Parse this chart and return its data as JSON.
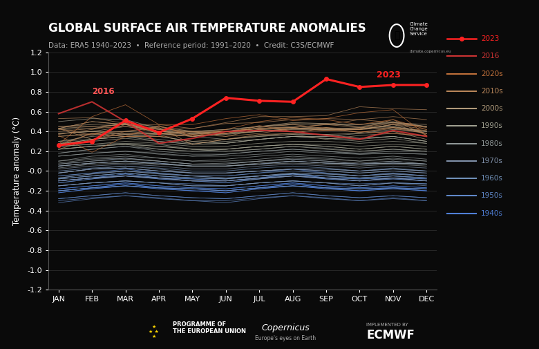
{
  "title": "GLOBAL SURFACE AIR TEMPERATURE ANOMALIES",
  "subtitle": "Data: ERA5 1940–2023  •  Reference period: 1991–2020  •  Credit: C3S/ECMWF",
  "ylabel": "Temperature anomaly (°C)",
  "ylim": [
    -1.2,
    1.2
  ],
  "months": [
    "JAN",
    "FEB",
    "MAR",
    "APR",
    "MAY",
    "JUN",
    "JUL",
    "AUG",
    "SEP",
    "OCT",
    "NOV",
    "DEC"
  ],
  "bg_color": "#0a0a0a",
  "year_2023": [
    0.26,
    0.3,
    0.51,
    0.39,
    0.53,
    0.74,
    0.71,
    0.7,
    0.93,
    0.85,
    0.87,
    0.87
  ],
  "year_2016": [
    0.58,
    0.7,
    0.5,
    0.28,
    0.33,
    0.4,
    0.41,
    0.4,
    0.36,
    0.32,
    0.41,
    0.35
  ],
  "decade_colors": {
    "2020s": "#c0703a",
    "2010s": "#b8865a",
    "2000s": "#b09a7a",
    "1990s": "#a0a090",
    "1980s": "#909898",
    "1970s": "#8090a8",
    "1960s": "#7090b8",
    "1950s": "#6088c8",
    "1940s": "#5080d8"
  },
  "decades": {
    "2020s": {
      "2020": [
        0.27,
        0.55,
        0.67,
        0.47,
        0.47,
        0.53,
        0.57,
        0.51,
        0.53,
        0.59,
        0.62,
        0.36
      ],
      "2021": [
        0.36,
        0.19,
        0.35,
        0.46,
        0.35,
        0.42,
        0.5,
        0.54,
        0.52,
        0.47,
        0.52,
        0.42
      ],
      "2022": [
        0.26,
        0.38,
        0.35,
        0.35,
        0.36,
        0.38,
        0.46,
        0.4,
        0.41,
        0.4,
        0.38,
        0.36
      ]
    },
    "2010s": {
      "2010": [
        0.53,
        0.54,
        0.48,
        0.38,
        0.4,
        0.35,
        0.42,
        0.4,
        0.41,
        0.43,
        0.52,
        0.36
      ],
      "2011": [
        0.22,
        0.32,
        0.4,
        0.44,
        0.27,
        0.32,
        0.37,
        0.38,
        0.44,
        0.39,
        0.44,
        0.41
      ],
      "2012": [
        0.37,
        0.42,
        0.49,
        0.4,
        0.4,
        0.38,
        0.44,
        0.47,
        0.43,
        0.39,
        0.43,
        0.38
      ],
      "2013": [
        0.43,
        0.36,
        0.47,
        0.38,
        0.37,
        0.35,
        0.38,
        0.43,
        0.44,
        0.42,
        0.47,
        0.42
      ],
      "2014": [
        0.43,
        0.32,
        0.38,
        0.37,
        0.39,
        0.4,
        0.43,
        0.44,
        0.47,
        0.52,
        0.49,
        0.44
      ],
      "2015": [
        0.45,
        0.45,
        0.47,
        0.47,
        0.43,
        0.49,
        0.55,
        0.55,
        0.56,
        0.65,
        0.63,
        0.62
      ],
      "2016": [
        0.58,
        0.7,
        0.5,
        0.28,
        0.33,
        0.4,
        0.41,
        0.4,
        0.36,
        0.32,
        0.41,
        0.35
      ],
      "2017": [
        0.43,
        0.5,
        0.47,
        0.43,
        0.4,
        0.4,
        0.43,
        0.44,
        0.47,
        0.44,
        0.48,
        0.45
      ],
      "2018": [
        0.35,
        0.38,
        0.4,
        0.45,
        0.37,
        0.4,
        0.43,
        0.44,
        0.41,
        0.42,
        0.44,
        0.38
      ],
      "2019": [
        0.4,
        0.43,
        0.45,
        0.42,
        0.43,
        0.48,
        0.49,
        0.52,
        0.53,
        0.52,
        0.55,
        0.52
      ]
    },
    "2000s": {
      "2000": [
        0.27,
        0.38,
        0.35,
        0.37,
        0.27,
        0.32,
        0.35,
        0.37,
        0.32,
        0.36,
        0.38,
        0.35
      ],
      "2001": [
        0.38,
        0.4,
        0.45,
        0.4,
        0.38,
        0.37,
        0.4,
        0.43,
        0.43,
        0.42,
        0.47,
        0.38
      ],
      "2002": [
        0.42,
        0.43,
        0.48,
        0.45,
        0.4,
        0.42,
        0.45,
        0.47,
        0.48,
        0.45,
        0.49,
        0.47
      ],
      "2003": [
        0.45,
        0.47,
        0.48,
        0.4,
        0.38,
        0.4,
        0.45,
        0.49,
        0.48,
        0.47,
        0.5,
        0.45
      ],
      "2004": [
        0.38,
        0.4,
        0.37,
        0.38,
        0.35,
        0.38,
        0.4,
        0.43,
        0.42,
        0.44,
        0.45,
        0.38
      ],
      "2005": [
        0.43,
        0.45,
        0.47,
        0.42,
        0.4,
        0.42,
        0.45,
        0.48,
        0.47,
        0.47,
        0.49,
        0.45
      ],
      "2006": [
        0.38,
        0.4,
        0.4,
        0.38,
        0.35,
        0.38,
        0.42,
        0.43,
        0.42,
        0.43,
        0.45,
        0.4
      ],
      "2007": [
        0.43,
        0.5,
        0.47,
        0.4,
        0.38,
        0.4,
        0.43,
        0.45,
        0.43,
        0.42,
        0.44,
        0.4
      ],
      "2008": [
        0.27,
        0.32,
        0.35,
        0.35,
        0.3,
        0.32,
        0.36,
        0.38,
        0.37,
        0.38,
        0.4,
        0.32
      ],
      "2009": [
        0.35,
        0.37,
        0.38,
        0.38,
        0.35,
        0.38,
        0.4,
        0.42,
        0.42,
        0.42,
        0.47,
        0.45
      ]
    },
    "1990s": {
      "1990": [
        0.27,
        0.32,
        0.35,
        0.32,
        0.28,
        0.3,
        0.32,
        0.35,
        0.33,
        0.32,
        0.35,
        0.3
      ],
      "1991": [
        0.3,
        0.35,
        0.37,
        0.35,
        0.3,
        0.28,
        0.32,
        0.35,
        0.33,
        0.3,
        0.33,
        0.28
      ],
      "1992": [
        0.22,
        0.25,
        0.27,
        0.25,
        0.22,
        0.2,
        0.22,
        0.25,
        0.22,
        0.2,
        0.22,
        0.2
      ],
      "1993": [
        0.22,
        0.25,
        0.27,
        0.25,
        0.22,
        0.22,
        0.25,
        0.27,
        0.25,
        0.22,
        0.25,
        0.22
      ],
      "1994": [
        0.25,
        0.27,
        0.3,
        0.28,
        0.25,
        0.25,
        0.28,
        0.3,
        0.3,
        0.28,
        0.3,
        0.28
      ],
      "1995": [
        0.3,
        0.32,
        0.35,
        0.3,
        0.27,
        0.28,
        0.32,
        0.35,
        0.35,
        0.33,
        0.35,
        0.3
      ],
      "1996": [
        0.22,
        0.25,
        0.27,
        0.22,
        0.2,
        0.22,
        0.25,
        0.27,
        0.25,
        0.22,
        0.25,
        0.22
      ],
      "1997": [
        0.28,
        0.3,
        0.33,
        0.3,
        0.27,
        0.28,
        0.32,
        0.35,
        0.35,
        0.38,
        0.42,
        0.4
      ],
      "1998": [
        0.5,
        0.53,
        0.52,
        0.43,
        0.35,
        0.32,
        0.35,
        0.37,
        0.37,
        0.33,
        0.35,
        0.3
      ],
      "1999": [
        0.25,
        0.27,
        0.28,
        0.27,
        0.22,
        0.22,
        0.25,
        0.27,
        0.27,
        0.25,
        0.27,
        0.25
      ]
    },
    "1980s": {
      "1980": [
        0.1,
        0.15,
        0.17,
        0.13,
        0.1,
        0.12,
        0.15,
        0.17,
        0.15,
        0.13,
        0.15,
        0.12
      ],
      "1981": [
        0.15,
        0.18,
        0.2,
        0.18,
        0.15,
        0.15,
        0.17,
        0.2,
        0.18,
        0.17,
        0.18,
        0.17
      ],
      "1982": [
        0.08,
        0.12,
        0.13,
        0.1,
        0.07,
        0.07,
        0.1,
        0.12,
        0.1,
        0.08,
        0.1,
        0.07
      ],
      "1983": [
        0.18,
        0.22,
        0.25,
        0.2,
        0.17,
        0.17,
        0.2,
        0.22,
        0.2,
        0.17,
        0.18,
        0.17
      ],
      "1984": [
        0.05,
        0.08,
        0.1,
        0.07,
        0.05,
        0.05,
        0.08,
        0.1,
        0.08,
        0.07,
        0.08,
        0.07
      ],
      "1985": [
        0.03,
        0.07,
        0.08,
        0.07,
        0.05,
        0.05,
        0.07,
        0.08,
        0.07,
        0.05,
        0.07,
        0.05
      ],
      "1986": [
        0.07,
        0.1,
        0.12,
        0.1,
        0.07,
        0.08,
        0.1,
        0.13,
        0.12,
        0.1,
        0.13,
        0.1
      ],
      "1987": [
        0.15,
        0.18,
        0.2,
        0.17,
        0.15,
        0.17,
        0.2,
        0.22,
        0.2,
        0.18,
        0.2,
        0.2
      ],
      "1988": [
        0.18,
        0.22,
        0.25,
        0.22,
        0.2,
        0.2,
        0.22,
        0.25,
        0.23,
        0.2,
        0.22,
        0.2
      ],
      "1989": [
        0.1,
        0.13,
        0.15,
        0.13,
        0.1,
        0.1,
        0.12,
        0.15,
        0.13,
        0.1,
        0.12,
        0.1
      ]
    },
    "1970s": {
      "1970": [
        -0.02,
        0.02,
        0.05,
        0.02,
        -0.02,
        -0.02,
        0.0,
        0.02,
        0.0,
        -0.02,
        0.0,
        -0.02
      ],
      "1971": [
        -0.1,
        -0.07,
        -0.05,
        -0.07,
        -0.1,
        -0.1,
        -0.08,
        -0.05,
        -0.07,
        -0.1,
        -0.07,
        -0.1
      ],
      "1972": [
        -0.02,
        0.02,
        0.03,
        0.0,
        -0.02,
        -0.02,
        0.0,
        0.02,
        0.02,
        0.0,
        0.02,
        0.0
      ],
      "1973": [
        0.07,
        0.1,
        0.13,
        0.1,
        0.07,
        0.07,
        0.1,
        0.12,
        0.1,
        0.07,
        0.1,
        0.07
      ],
      "1974": [
        -0.1,
        -0.07,
        -0.05,
        -0.07,
        -0.1,
        -0.1,
        -0.07,
        -0.05,
        -0.07,
        -0.1,
        -0.07,
        -0.1
      ],
      "1975": [
        -0.07,
        -0.03,
        0.0,
        -0.03,
        -0.05,
        -0.07,
        -0.05,
        -0.02,
        -0.03,
        -0.05,
        -0.03,
        -0.05
      ],
      "1976": [
        -0.15,
        -0.12,
        -0.1,
        -0.12,
        -0.15,
        -0.15,
        -0.12,
        -0.1,
        -0.12,
        -0.15,
        -0.12,
        -0.15
      ],
      "1977": [
        0.05,
        0.08,
        0.1,
        0.07,
        0.05,
        0.05,
        0.07,
        0.1,
        0.08,
        0.07,
        0.08,
        0.07
      ],
      "1978": [
        0.02,
        0.05,
        0.07,
        0.05,
        0.02,
        0.02,
        0.05,
        0.07,
        0.05,
        0.03,
        0.05,
        0.03
      ],
      "1979": [
        0.05,
        0.08,
        0.1,
        0.08,
        0.05,
        0.05,
        0.07,
        0.1,
        0.08,
        0.07,
        0.08,
        0.07
      ]
    },
    "1960s": {
      "1960": [
        -0.07,
        -0.03,
        0.0,
        -0.03,
        -0.05,
        -0.07,
        -0.05,
        -0.02,
        -0.03,
        -0.05,
        -0.03,
        -0.05
      ],
      "1961": [
        0.0,
        0.03,
        0.05,
        0.03,
        0.0,
        0.0,
        0.03,
        0.05,
        0.03,
        0.0,
        0.03,
        0.0
      ],
      "1962": [
        -0.02,
        0.02,
        0.03,
        0.0,
        -0.02,
        -0.02,
        0.0,
        0.02,
        0.0,
        -0.02,
        0.0,
        -0.02
      ],
      "1963": [
        -0.02,
        0.02,
        0.03,
        0.0,
        -0.02,
        -0.02,
        0.0,
        0.02,
        0.02,
        0.0,
        0.02,
        0.0
      ],
      "1964": [
        -0.2,
        -0.17,
        -0.15,
        -0.17,
        -0.18,
        -0.2,
        -0.17,
        -0.15,
        -0.17,
        -0.18,
        -0.17,
        -0.18
      ],
      "1965": [
        -0.15,
        -0.12,
        -0.1,
        -0.12,
        -0.15,
        -0.15,
        -0.12,
        -0.1,
        -0.12,
        -0.15,
        -0.12,
        -0.13
      ],
      "1966": [
        -0.08,
        -0.05,
        -0.02,
        -0.05,
        -0.07,
        -0.08,
        -0.05,
        -0.03,
        -0.05,
        -0.07,
        -0.05,
        -0.07
      ],
      "1967": [
        -0.05,
        -0.02,
        0.0,
        -0.02,
        -0.05,
        -0.05,
        -0.02,
        0.0,
        -0.02,
        -0.05,
        -0.02,
        -0.05
      ],
      "1968": [
        -0.08,
        -0.05,
        -0.02,
        -0.05,
        -0.07,
        -0.08,
        -0.05,
        -0.03,
        -0.05,
        -0.07,
        -0.05,
        -0.07
      ],
      "1969": [
        0.05,
        0.08,
        0.1,
        0.08,
        0.05,
        0.05,
        0.07,
        0.1,
        0.08,
        0.07,
        0.08,
        0.07
      ]
    },
    "1950s": {
      "1950": [
        -0.3,
        -0.27,
        -0.25,
        -0.27,
        -0.3,
        -0.3,
        -0.27,
        -0.25,
        -0.27,
        -0.3,
        -0.27,
        -0.3
      ],
      "1951": [
        -0.15,
        -0.12,
        -0.1,
        -0.12,
        -0.15,
        -0.15,
        -0.12,
        -0.1,
        -0.12,
        -0.15,
        -0.12,
        -0.13
      ],
      "1952": [
        -0.15,
        -0.12,
        -0.1,
        -0.12,
        -0.13,
        -0.15,
        -0.12,
        -0.1,
        -0.12,
        -0.13,
        -0.12,
        -0.13
      ],
      "1953": [
        -0.08,
        -0.05,
        -0.02,
        -0.05,
        -0.07,
        -0.08,
        -0.05,
        -0.03,
        -0.05,
        -0.07,
        -0.05,
        -0.07
      ],
      "1954": [
        -0.28,
        -0.25,
        -0.22,
        -0.25,
        -0.27,
        -0.28,
        -0.25,
        -0.22,
        -0.25,
        -0.27,
        -0.25,
        -0.27
      ],
      "1955": [
        -0.28,
        -0.25,
        -0.22,
        -0.25,
        -0.27,
        -0.28,
        -0.25,
        -0.22,
        -0.25,
        -0.27,
        -0.25,
        -0.27
      ],
      "1956": [
        -0.32,
        -0.28,
        -0.25,
        -0.28,
        -0.3,
        -0.32,
        -0.28,
        -0.25,
        -0.28,
        -0.3,
        -0.28,
        -0.3
      ],
      "1957": [
        -0.12,
        -0.08,
        -0.05,
        -0.08,
        -0.1,
        -0.12,
        -0.08,
        -0.05,
        -0.08,
        -0.1,
        -0.08,
        -0.1
      ],
      "1958": [
        -0.1,
        -0.07,
        -0.03,
        -0.07,
        -0.08,
        -0.1,
        -0.07,
        -0.03,
        -0.07,
        -0.08,
        -0.07,
        -0.08
      ],
      "1959": [
        -0.12,
        -0.08,
        -0.05,
        -0.08,
        -0.1,
        -0.12,
        -0.08,
        -0.05,
        -0.08,
        -0.1,
        -0.08,
        -0.1
      ]
    },
    "1940s": {
      "1940": [
        -0.2,
        -0.17,
        -0.15,
        -0.17,
        -0.2,
        -0.2,
        -0.17,
        -0.15,
        -0.17,
        -0.2,
        -0.17,
        -0.2
      ],
      "1941": [
        -0.1,
        -0.07,
        -0.05,
        -0.07,
        -0.1,
        -0.1,
        -0.07,
        -0.05,
        -0.07,
        -0.1,
        -0.07,
        -0.1
      ],
      "1942": [
        -0.22,
        -0.18,
        -0.15,
        -0.18,
        -0.2,
        -0.22,
        -0.18,
        -0.15,
        -0.18,
        -0.2,
        -0.18,
        -0.2
      ],
      "1943": [
        -0.2,
        -0.17,
        -0.13,
        -0.17,
        -0.18,
        -0.2,
        -0.17,
        -0.13,
        -0.17,
        -0.18,
        -0.17,
        -0.18
      ],
      "1944": [
        -0.05,
        -0.02,
        0.02,
        -0.02,
        -0.05,
        -0.05,
        -0.02,
        0.02,
        -0.02,
        -0.05,
        -0.02,
        -0.05
      ],
      "1945": [
        -0.1,
        -0.07,
        -0.03,
        -0.07,
        -0.08,
        -0.1,
        -0.07,
        -0.03,
        -0.07,
        -0.08,
        -0.07,
        -0.08
      ],
      "1946": [
        -0.22,
        -0.18,
        -0.15,
        -0.18,
        -0.2,
        -0.22,
        -0.18,
        -0.15,
        -0.18,
        -0.2,
        -0.18,
        -0.2
      ],
      "1947": [
        -0.18,
        -0.15,
        -0.12,
        -0.15,
        -0.17,
        -0.18,
        -0.15,
        -0.12,
        -0.15,
        -0.17,
        -0.15,
        -0.17
      ],
      "1948": [
        -0.18,
        -0.15,
        -0.12,
        -0.15,
        -0.17,
        -0.18,
        -0.15,
        -0.12,
        -0.15,
        -0.17,
        -0.15,
        -0.17
      ],
      "1949": [
        -0.2,
        -0.17,
        -0.13,
        -0.17,
        -0.18,
        -0.2,
        -0.17,
        -0.13,
        -0.17,
        -0.18,
        -0.17,
        -0.18
      ]
    }
  }
}
